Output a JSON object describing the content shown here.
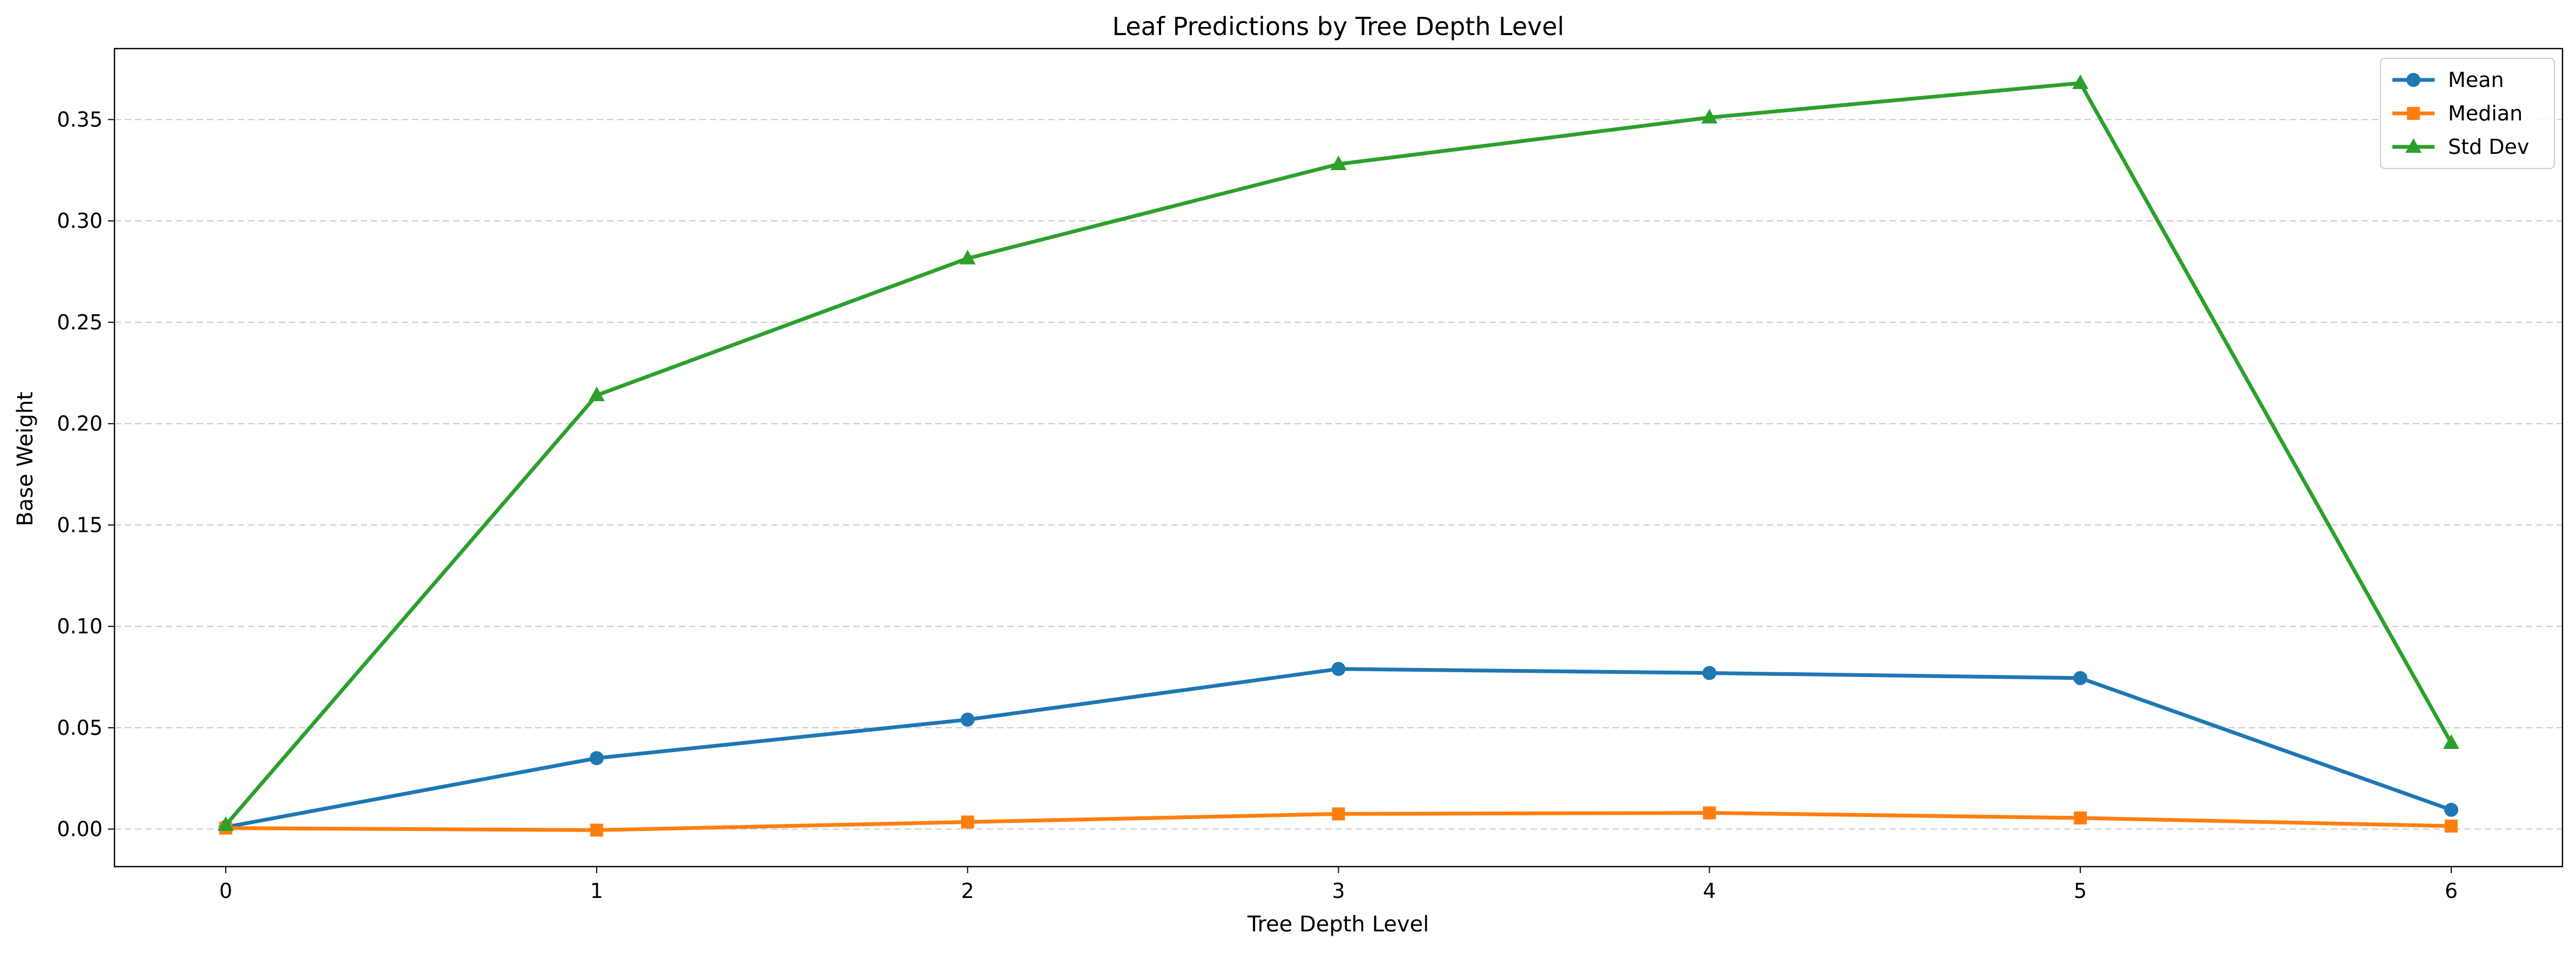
{
  "chart_data": {
    "type": "line",
    "title": "Leaf Predictions by Tree Depth Level",
    "xlabel": "Tree Depth Level",
    "ylabel": "Base Weight",
    "x": [
      0,
      1,
      2,
      3,
      4,
      5,
      6
    ],
    "xlim": [
      -0.3,
      6.3
    ],
    "ylim": [
      -0.0185,
      0.385
    ],
    "xticks": [
      0,
      1,
      2,
      3,
      4,
      5,
      6
    ],
    "yticks": [
      0.0,
      0.05,
      0.1,
      0.15,
      0.2,
      0.25,
      0.3,
      0.35
    ],
    "ytick_labels": [
      "0.00",
      "0.05",
      "0.10",
      "0.15",
      "0.20",
      "0.25",
      "0.30",
      "0.35"
    ],
    "grid": "y-dashed",
    "legend_position": "top-right",
    "series": [
      {
        "name": "Mean",
        "marker": "circle",
        "color": "#1f77b4",
        "values": [
          0.001,
          0.035,
          0.054,
          0.079,
          0.077,
          0.0745,
          0.0095
        ]
      },
      {
        "name": "Median",
        "marker": "square",
        "color": "#ff7f0e",
        "values": [
          0.0005,
          -0.0005,
          0.0035,
          0.0075,
          0.008,
          0.0055,
          0.0015
        ]
      },
      {
        "name": "Std Dev",
        "marker": "triangle",
        "color": "#2ca02c",
        "values": [
          0.002,
          0.214,
          0.2815,
          0.328,
          0.351,
          0.368,
          0.0425
        ]
      }
    ]
  }
}
